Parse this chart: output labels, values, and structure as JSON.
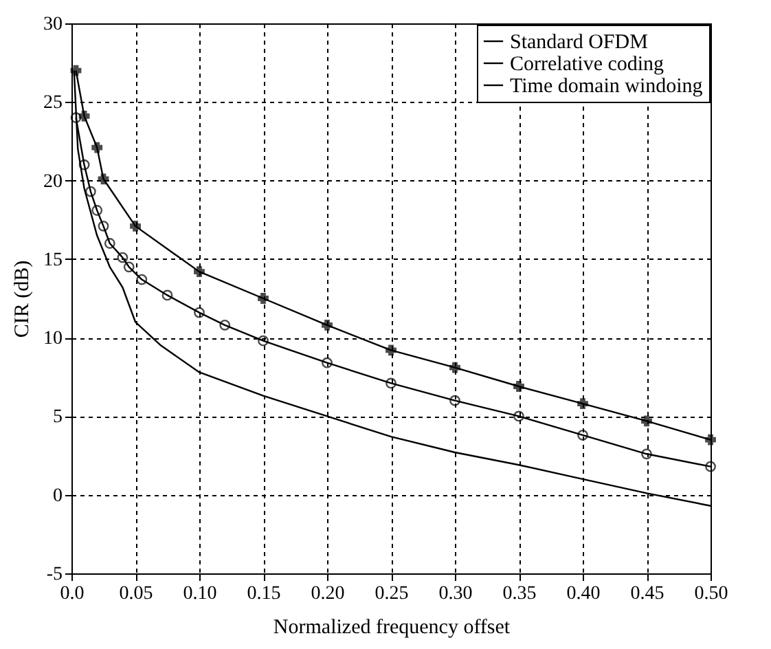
{
  "chart_data": {
    "type": "line",
    "xlabel": "Normalized frequency offset",
    "ylabel": "CIR  (dB)",
    "xlim": [
      0,
      0.5
    ],
    "ylim": [
      -5,
      30
    ],
    "xticks": [
      {
        "value": 0,
        "label": "0.0"
      },
      0.05,
      {
        "value": 0.1,
        "label": "0.10"
      },
      0.15,
      {
        "value": 0.2,
        "label": "0.20"
      },
      0.25,
      {
        "value": 0.3,
        "label": "0.30"
      },
      0.35,
      {
        "value": 0.4,
        "label": "0.40"
      },
      0.45,
      {
        "value": 0.5,
        "label": "0.50"
      }
    ],
    "yticks": [
      -5,
      0,
      5,
      10,
      15,
      20,
      25,
      30
    ],
    "grid": true,
    "legend": "top right",
    "line_style": "solid",
    "series": [
      {
        "name": "Standard OFDM",
        "color": "#000000",
        "marker": "none",
        "x": [
          0.002,
          0.005,
          0.01,
          0.02,
          0.03,
          0.04,
          0.05,
          0.07,
          0.1,
          0.15,
          0.2,
          0.25,
          0.3,
          0.35,
          0.4,
          0.45,
          0.5
        ],
        "values": [
          27,
          22,
          19.5,
          16.5,
          14.5,
          13.2,
          11,
          9.5,
          7.8,
          6.3,
          5,
          3.7,
          2.7,
          1.9,
          1,
          0.1,
          -0.7
        ]
      },
      {
        "name": "Correlative coding",
        "color": "#000000",
        "marker": "circle",
        "x": [
          0.0035,
          0.01,
          0.015,
          0.02,
          0.025,
          0.03,
          0.04,
          0.045,
          0.055,
          0.075,
          0.1,
          0.12,
          0.15,
          0.2,
          0.25,
          0.3,
          0.35,
          0.4,
          0.45,
          0.5
        ],
        "values": [
          24,
          21,
          19.3,
          18.1,
          17.1,
          16,
          15.1,
          14.5,
          13.7,
          12.7,
          11.6,
          10.8,
          9.8,
          8.4,
          7.1,
          6,
          5,
          3.8,
          2.6,
          1.8
        ]
      },
      {
        "name": "Time domain windoing",
        "color": "#000000",
        "marker": "cross",
        "x": [
          0.0035,
          0.01,
          0.02,
          0.025,
          0.05,
          0.1,
          0.15,
          0.2,
          0.25,
          0.3,
          0.35,
          0.4,
          0.45,
          0.5
        ],
        "values": [
          27,
          24.1,
          22.1,
          20.1,
          17.1,
          14.2,
          12.5,
          10.8,
          9.2,
          8.1,
          6.9,
          5.8,
          4.7,
          3.5
        ]
      }
    ]
  }
}
